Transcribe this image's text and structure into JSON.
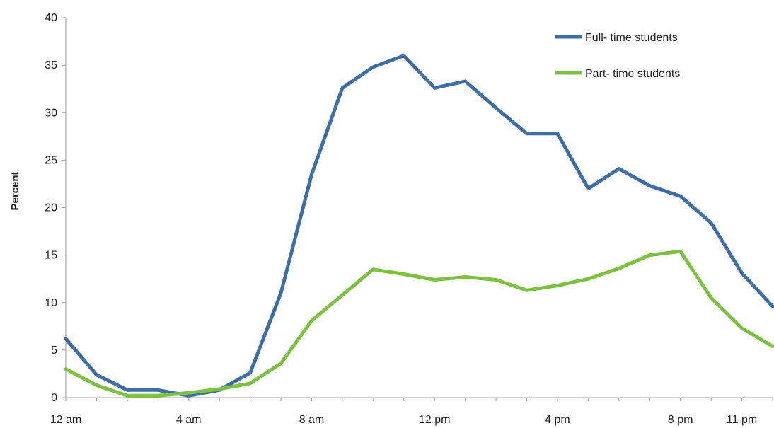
{
  "chart_data": {
    "type": "line",
    "ylabel": "Percent",
    "xlabel": "",
    "ylim": [
      0,
      40
    ],
    "yticks": [
      0,
      5,
      10,
      15,
      20,
      25,
      30,
      35,
      40
    ],
    "xlim": [
      0,
      23
    ],
    "x": [
      0,
      1,
      2,
      3,
      4,
      5,
      6,
      7,
      8,
      9,
      10,
      11,
      12,
      13,
      14,
      15,
      16,
      17,
      18,
      19,
      20,
      21,
      22,
      23
    ],
    "x_tick_labels": [
      {
        "x": 0,
        "label": "12 am"
      },
      {
        "x": 4,
        "label": "4 am"
      },
      {
        "x": 8,
        "label": "8 am"
      },
      {
        "x": 12,
        "label": "12 pm"
      },
      {
        "x": 16,
        "label": "4 pm"
      },
      {
        "x": 20,
        "label": "8 pm"
      },
      {
        "x": 22,
        "label": "11 pm"
      }
    ],
    "legend_position": "top-right",
    "grid": false,
    "series": [
      {
        "name": "Full- time students",
        "color": "#3d6ea8",
        "values": [
          6.2,
          2.4,
          0.8,
          0.8,
          0.2,
          0.8,
          2.6,
          11.0,
          23.5,
          32.6,
          34.8,
          36.0,
          32.6,
          33.3,
          30.5,
          27.8,
          27.8,
          22.0,
          24.1,
          22.3,
          21.2,
          18.4,
          13.1,
          9.6
        ]
      },
      {
        "name": "Part- time students",
        "color": "#7cc142",
        "values": [
          3.0,
          1.3,
          0.2,
          0.2,
          0.5,
          0.9,
          1.5,
          3.6,
          8.1,
          10.8,
          13.5,
          13.0,
          12.4,
          12.7,
          12.4,
          11.3,
          11.8,
          12.5,
          13.6,
          15.0,
          15.4,
          10.5,
          7.3,
          5.4
        ]
      }
    ]
  }
}
